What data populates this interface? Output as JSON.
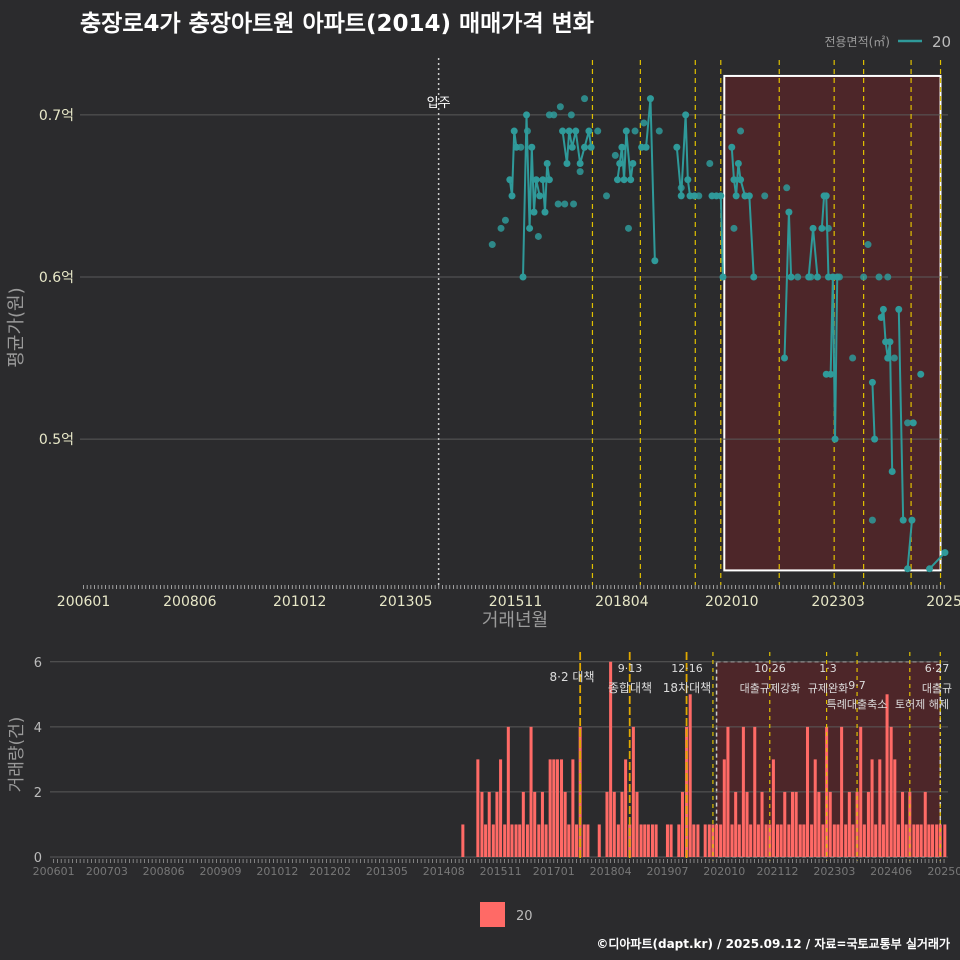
{
  "title": "충장로4가 충장아트원 아파트(2014) 매매가격 변화",
  "credit": "©디아파트(dapt.kr) / 2025.09.12 / 자료=국토교통부 실거래가",
  "legend": {
    "title": "전용면적(㎡)",
    "label": "20"
  },
  "colors": {
    "line": "#2f9a9a",
    "bar": "#ff6a66",
    "accent_line": "#e0c000",
    "grid": "#5a5a5a",
    "text": "#e8e8c8",
    "axis_title": "#9a9a9a"
  },
  "chart_data": [
    {
      "type": "line",
      "ylabel": "평균가(원)",
      "xlabel": "거래년월",
      "y_ticks": [
        {
          "v": 0.5,
          "label": "0.5억"
        },
        {
          "v": 0.6,
          "label": "0.6억"
        },
        {
          "v": 0.7,
          "label": "0.7억"
        }
      ],
      "ylim": [
        0.41,
        0.74
      ],
      "x_ticks": [
        "200601",
        "200806",
        "201012",
        "201305",
        "201511",
        "201804",
        "202010",
        "202303",
        "2025"
      ],
      "xlim": [
        2005.92,
        2025.67
      ],
      "move_in": {
        "x": 2014.08,
        "label": "입주"
      },
      "policy_lines": [
        2017.58,
        2018.67,
        2019.92,
        2020.5,
        2021.83,
        2023.08,
        2023.75,
        2024.83,
        2025.5
      ],
      "highlight": {
        "x0": 2020.58,
        "x1": 2025.5,
        "y0": 0.419,
        "y1": 0.724
      },
      "series": [
        {
          "name": "20",
          "segments": [
            [
              [
                2015.7,
                0.66
              ],
              [
                2015.75,
                0.65
              ],
              [
                2015.8,
                0.69
              ],
              [
                2015.85,
                0.68
              ]
            ],
            [
              [
                2016.0,
                0.6
              ],
              [
                2016.08,
                0.7
              ],
              [
                2016.15,
                0.63
              ],
              [
                2016.2,
                0.68
              ],
              [
                2016.25,
                0.64
              ],
              [
                2016.3,
                0.66
              ],
              [
                2016.38,
                0.65
              ]
            ],
            [
              [
                2016.45,
                0.66
              ],
              [
                2016.5,
                0.64
              ],
              [
                2016.55,
                0.67
              ],
              [
                2016.6,
                0.66
              ]
            ],
            [
              [
                2016.9,
                0.69
              ],
              [
                2017.0,
                0.67
              ],
              [
                2017.05,
                0.69
              ],
              [
                2017.12,
                0.68
              ],
              [
                2017.2,
                0.69
              ],
              [
                2017.3,
                0.67
              ],
              [
                2017.4,
                0.68
              ],
              [
                2017.5,
                0.69
              ],
              [
                2017.55,
                0.68
              ]
            ],
            [
              [
                2018.15,
                0.66
              ],
              [
                2018.2,
                0.67
              ],
              [
                2018.25,
                0.68
              ],
              [
                2018.3,
                0.66
              ],
              [
                2018.35,
                0.69
              ],
              [
                2018.45,
                0.66
              ],
              [
                2018.5,
                0.67
              ]
            ],
            [
              [
                2018.7,
                0.68
              ],
              [
                2018.8,
                0.68
              ],
              [
                2018.9,
                0.71
              ],
              [
                2019.0,
                0.61
              ]
            ],
            [
              [
                2019.5,
                0.68
              ],
              [
                2019.6,
                0.65
              ],
              [
                2019.7,
                0.7
              ],
              [
                2019.75,
                0.66
              ],
              [
                2019.8,
                0.65
              ],
              [
                2019.9,
                0.65
              ]
            ],
            [
              [
                2020.3,
                0.65
              ],
              [
                2020.4,
                0.65
              ],
              [
                2020.5,
                0.65
              ],
              [
                2020.55,
                0.6
              ]
            ],
            [
              [
                2020.75,
                0.68
              ],
              [
                2020.8,
                0.66
              ],
              [
                2020.85,
                0.65
              ],
              [
                2020.9,
                0.67
              ],
              [
                2020.95,
                0.66
              ],
              [
                2021.05,
                0.65
              ],
              [
                2021.15,
                0.65
              ],
              [
                2021.25,
                0.6
              ]
            ],
            [
              [
                2021.95,
                0.55
              ],
              [
                2022.05,
                0.64
              ],
              [
                2022.1,
                0.6
              ]
            ],
            [
              [
                2022.5,
                0.6
              ],
              [
                2022.6,
                0.63
              ],
              [
                2022.7,
                0.6
              ]
            ],
            [
              [
                2022.8,
                0.63
              ],
              [
                2022.85,
                0.65
              ],
              [
                2022.9,
                0.65
              ],
              [
                2022.95,
                0.6
              ]
            ],
            [
              [
                2022.9,
                0.54
              ],
              [
                2023.0,
                0.54
              ],
              [
                2023.05,
                0.6
              ],
              [
                2023.1,
                0.5
              ],
              [
                2023.15,
                0.6
              ]
            ],
            [
              [
                2023.95,
                0.535
              ],
              [
                2024.0,
                0.5
              ]
            ],
            [
              [
                2024.15,
                0.575
              ],
              [
                2024.2,
                0.58
              ],
              [
                2024.25,
                0.56
              ],
              [
                2024.3,
                0.55
              ],
              [
                2024.35,
                0.56
              ],
              [
                2024.4,
                0.48
              ]
            ],
            [
              [
                2024.55,
                0.58
              ],
              [
                2024.65,
                0.45
              ]
            ],
            [
              [
                2024.75,
                0.42
              ],
              [
                2024.85,
                0.45
              ]
            ],
            [
              [
                2024.88,
                0.51
              ]
            ],
            [
              [
                2025.05,
                0.54
              ]
            ],
            [
              [
                2025.25,
                0.42
              ],
              [
                2025.6,
                0.43
              ]
            ]
          ],
          "points": [
            [
              2015.3,
              0.62
            ],
            [
              2015.5,
              0.63
            ],
            [
              2015.6,
              0.635
            ],
            [
              2015.95,
              0.68
            ],
            [
              2016.1,
              0.69
            ],
            [
              2016.35,
              0.625
            ],
            [
              2016.6,
              0.7
            ],
            [
              2016.7,
              0.7
            ],
            [
              2016.8,
              0.645
            ],
            [
              2016.85,
              0.705
            ],
            [
              2016.95,
              0.645
            ],
            [
              2017.1,
              0.7
            ],
            [
              2017.15,
              0.645
            ],
            [
              2017.3,
              0.665
            ],
            [
              2017.4,
              0.71
            ],
            [
              2017.7,
              0.69
            ],
            [
              2017.9,
              0.65
            ],
            [
              2018.1,
              0.675
            ],
            [
              2018.4,
              0.63
            ],
            [
              2018.55,
              0.69
            ],
            [
              2018.75,
              0.695
            ],
            [
              2019.1,
              0.69
            ],
            [
              2019.6,
              0.655
            ],
            [
              2020.0,
              0.65
            ],
            [
              2020.25,
              0.67
            ],
            [
              2020.8,
              0.63
            ],
            [
              2020.95,
              0.69
            ],
            [
              2021.05,
              0.65
            ],
            [
              2021.5,
              0.65
            ],
            [
              2022.0,
              0.655
            ],
            [
              2022.25,
              0.6
            ],
            [
              2022.55,
              0.6
            ],
            [
              2022.95,
              0.63
            ],
            [
              2023.2,
              0.6
            ],
            [
              2023.5,
              0.55
            ],
            [
              2023.75,
              0.6
            ],
            [
              2023.85,
              0.62
            ],
            [
              2023.95,
              0.45
            ],
            [
              2024.1,
              0.6
            ],
            [
              2024.3,
              0.6
            ],
            [
              2024.3,
              0.55
            ],
            [
              2024.45,
              0.55
            ],
            [
              2024.75,
              0.51
            ]
          ]
        }
      ]
    },
    {
      "type": "bar",
      "ylabel": "거래량(건)",
      "y_ticks": [
        0,
        2,
        4,
        6
      ],
      "ylim": [
        0,
        6.3
      ],
      "x_ticks": [
        "200601",
        "200703",
        "200806",
        "200909",
        "201012",
        "201202",
        "201305",
        "201408",
        "201511",
        "201701",
        "201804",
        "201907",
        "202010",
        "202112",
        "202303",
        "202406",
        "20250"
      ],
      "xlim": [
        2005.92,
        2025.67
      ],
      "legend_label": "20",
      "policy_lines": [
        {
          "x": 2017.58,
          "date": "8·2",
          "label": "대책",
          "style": "solid"
        },
        {
          "x": 2018.67,
          "date": "9·13",
          "label": "종합대책",
          "style": "solid"
        },
        {
          "x": 2019.92,
          "date": "12·16",
          "label": "18차대책",
          "style": "solid"
        },
        {
          "x": 2020.5,
          "date": "",
          "label": "",
          "style": "dash"
        },
        {
          "x": 2021.75,
          "date": "10·26",
          "label": "대출규제강화",
          "style": "dash"
        },
        {
          "x": 2023.0,
          "date": "1·3",
          "label": "규제완화",
          "style": "dash"
        },
        {
          "x": 2023.67,
          "date": "9·7",
          "label": "특례대출축소",
          "style": "dash"
        },
        {
          "x": 2024.83,
          "date": "",
          "label": "토허제 해제",
          "style": "dash"
        },
        {
          "x": 2025.5,
          "date": "6·27",
          "label": "대출규",
          "style": "dash"
        }
      ],
      "highlight": {
        "x0": 2020.58,
        "x1": 2025.5
      },
      "bars": [
        [
          2015.0,
          1
        ],
        [
          2015.33,
          3
        ],
        [
          2015.42,
          2
        ],
        [
          2015.5,
          1
        ],
        [
          2015.58,
          2
        ],
        [
          2015.67,
          1
        ],
        [
          2015.75,
          2
        ],
        [
          2015.83,
          3
        ],
        [
          2015.92,
          1
        ],
        [
          2016.0,
          4
        ],
        [
          2016.08,
          1
        ],
        [
          2016.17,
          1
        ],
        [
          2016.25,
          1
        ],
        [
          2016.33,
          2
        ],
        [
          2016.42,
          1
        ],
        [
          2016.5,
          4
        ],
        [
          2016.58,
          2
        ],
        [
          2016.67,
          1
        ],
        [
          2016.75,
          2
        ],
        [
          2016.83,
          1
        ],
        [
          2016.92,
          3
        ],
        [
          2017.0,
          3
        ],
        [
          2017.08,
          3
        ],
        [
          2017.17,
          3
        ],
        [
          2017.25,
          2
        ],
        [
          2017.33,
          1
        ],
        [
          2017.42,
          3
        ],
        [
          2017.5,
          1
        ],
        [
          2017.58,
          4
        ],
        [
          2017.67,
          1
        ],
        [
          2017.75,
          1
        ],
        [
          2018.0,
          1
        ],
        [
          2018.17,
          2
        ],
        [
          2018.25,
          6
        ],
        [
          2018.33,
          2
        ],
        [
          2018.42,
          1
        ],
        [
          2018.5,
          2
        ],
        [
          2018.58,
          3
        ],
        [
          2018.67,
          1
        ],
        [
          2018.75,
          4
        ],
        [
          2018.83,
          2
        ],
        [
          2018.92,
          1
        ],
        [
          2019.0,
          1
        ],
        [
          2019.08,
          1
        ],
        [
          2019.17,
          1
        ],
        [
          2019.25,
          1
        ],
        [
          2019.5,
          1
        ],
        [
          2019.58,
          1
        ],
        [
          2019.75,
          1
        ],
        [
          2019.83,
          2
        ],
        [
          2019.92,
          4
        ],
        [
          2020.0,
          5
        ],
        [
          2020.08,
          1
        ],
        [
          2020.17,
          1
        ],
        [
          2020.33,
          1
        ],
        [
          2020.42,
          1
        ],
        [
          2020.5,
          1
        ],
        [
          2020.58,
          1
        ],
        [
          2020.67,
          1
        ],
        [
          2020.75,
          3
        ],
        [
          2020.83,
          4
        ],
        [
          2020.92,
          1
        ],
        [
          2021.0,
          2
        ],
        [
          2021.08,
          1
        ],
        [
          2021.17,
          4
        ],
        [
          2021.25,
          2
        ],
        [
          2021.33,
          1
        ],
        [
          2021.42,
          4
        ],
        [
          2021.5,
          1
        ],
        [
          2021.58,
          2
        ],
        [
          2021.67,
          1
        ],
        [
          2021.75,
          1
        ],
        [
          2021.83,
          3
        ],
        [
          2021.92,
          1
        ],
        [
          2022.0,
          1
        ],
        [
          2022.08,
          2
        ],
        [
          2022.17,
          1
        ],
        [
          2022.25,
          2
        ],
        [
          2022.33,
          2
        ],
        [
          2022.42,
          1
        ],
        [
          2022.5,
          1
        ],
        [
          2022.58,
          4
        ],
        [
          2022.67,
          1
        ],
        [
          2022.75,
          3
        ],
        [
          2022.83,
          2
        ],
        [
          2022.92,
          1
        ],
        [
          2023.0,
          4
        ],
        [
          2023.08,
          2
        ],
        [
          2023.17,
          1
        ],
        [
          2023.25,
          1
        ],
        [
          2023.33,
          4
        ],
        [
          2023.42,
          1
        ],
        [
          2023.5,
          2
        ],
        [
          2023.58,
          1
        ],
        [
          2023.67,
          2
        ],
        [
          2023.75,
          4
        ],
        [
          2023.83,
          1
        ],
        [
          2023.92,
          2
        ],
        [
          2024.0,
          3
        ],
        [
          2024.08,
          1
        ],
        [
          2024.17,
          3
        ],
        [
          2024.25,
          1
        ],
        [
          2024.33,
          5
        ],
        [
          2024.42,
          4
        ],
        [
          2024.5,
          3
        ],
        [
          2024.58,
          1
        ],
        [
          2024.67,
          2
        ],
        [
          2024.75,
          1
        ],
        [
          2024.83,
          2
        ],
        [
          2024.92,
          1
        ],
        [
          2025.0,
          1
        ],
        [
          2025.08,
          1
        ],
        [
          2025.17,
          2
        ],
        [
          2025.25,
          1
        ],
        [
          2025.33,
          1
        ],
        [
          2025.42,
          1
        ],
        [
          2025.5,
          1
        ],
        [
          2025.6,
          1
        ]
      ]
    }
  ]
}
